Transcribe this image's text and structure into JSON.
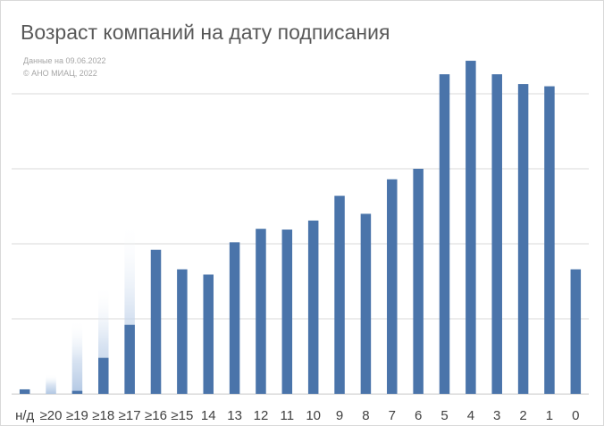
{
  "title": "Возраст компаний на дату подписания",
  "subtitle_lines": [
    "Данные на 09.06.2022",
    "© АНО МИАЦ, 2022"
  ],
  "chart_data": {
    "type": "bar",
    "title": "Возраст компаний на дату подписания",
    "categories": [
      "н/д",
      "≥20",
      "≥19",
      "≥18",
      "≥17",
      "≥16",
      "≥15",
      "14",
      "13",
      "12",
      "11",
      "10",
      "9",
      "8",
      "7",
      "6",
      "5",
      "4",
      "3",
      "2",
      "1",
      "0"
    ],
    "series": [
      {
        "values": [
          0.6,
          0,
          0.4,
          4.8,
          9.2,
          19.2,
          16.6,
          15.9,
          20.2,
          22.0,
          21.9,
          23.1,
          26.4,
          24.0,
          28.6,
          30.0,
          42.6,
          44.4,
          42.6,
          41.3,
          41.0,
          16.6
        ],
        "color": "#4a74aa"
      },
      {
        "values": [
          0,
          2.6,
          9.9,
          14.5,
          23.0,
          8.5,
          0,
          0,
          0,
          0,
          0,
          0,
          0,
          0,
          0,
          0,
          0,
          0,
          0,
          0,
          0,
          0
        ],
        "color": "#c7d7ec",
        "style": "fading-gradient"
      }
    ],
    "ylim": [
      0,
      45
    ],
    "grid": true,
    "legend": "none",
    "xlabel": "",
    "ylabel": ""
  }
}
